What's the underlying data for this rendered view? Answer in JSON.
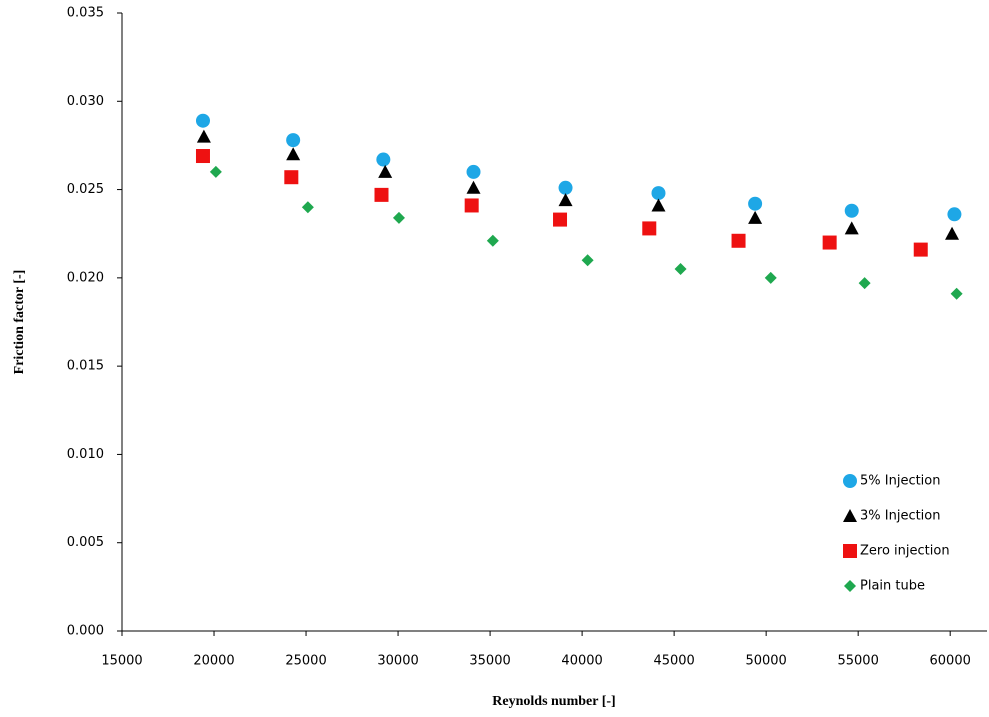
{
  "chart_data": {
    "type": "scatter",
    "x_label": "Reynolds number [-]",
    "y_label": "Friction factor [-]",
    "xlim": [
      15000,
      62000
    ],
    "xticks": [
      15000,
      20000,
      25000,
      30000,
      35000,
      40000,
      45000,
      50000,
      55000,
      60000
    ],
    "ylim": [
      0,
      0.035
    ],
    "yticks": [
      {
        "value": 0,
        "label": "0.000"
      },
      {
        "value": 0.005,
        "label": "0.005"
      },
      {
        "value": 0.01,
        "label": "0.010"
      },
      {
        "value": 0.015,
        "label": "0.015"
      },
      {
        "value": 0.02,
        "label": "0.020"
      },
      {
        "value": 0.025,
        "label": "0.025"
      },
      {
        "value": 0.03,
        "label": "0.030"
      },
      {
        "value": 0.035,
        "label": "0.035"
      }
    ],
    "grid": false,
    "legend": "bottom-right",
    "series": [
      {
        "name": "5% Injection",
        "color": "#1ea7e6",
        "marker": "circle",
        "x": [
          19400,
          24300,
          29200,
          34100,
          39100,
          44150,
          49400,
          54650,
          60230
        ],
        "values": [
          0.0289,
          0.0278,
          0.0267,
          0.026,
          0.0251,
          0.0248,
          0.0242,
          0.0238,
          0.0236
        ]
      },
      {
        "name": "3% Injection",
        "color": "#000000",
        "marker": "triangle",
        "x": [
          19450,
          24300,
          29300,
          34100,
          39100,
          44150,
          49400,
          54650,
          60100
        ],
        "values": [
          0.028,
          0.027,
          0.026,
          0.0251,
          0.0244,
          0.0241,
          0.0234,
          0.0228,
          0.0225
        ]
      },
      {
        "name": "Zero injection",
        "color": "#ee1111",
        "marker": "square",
        "x": [
          19400,
          24200,
          29100,
          34000,
          38800,
          43650,
          48500,
          53450,
          58400
        ],
        "values": [
          0.0269,
          0.0257,
          0.0247,
          0.0241,
          0.0233,
          0.0228,
          0.0221,
          0.022,
          0.0216
        ]
      },
      {
        "name": "Plain tube",
        "color": "#1fa84f",
        "marker": "diamond",
        "x": [
          20100,
          25100,
          30050,
          35150,
          40300,
          45350,
          50250,
          55350,
          60350
        ],
        "values": [
          0.026,
          0.024,
          0.0234,
          0.0221,
          0.021,
          0.0205,
          0.02,
          0.0197,
          0.0191
        ]
      }
    ]
  }
}
